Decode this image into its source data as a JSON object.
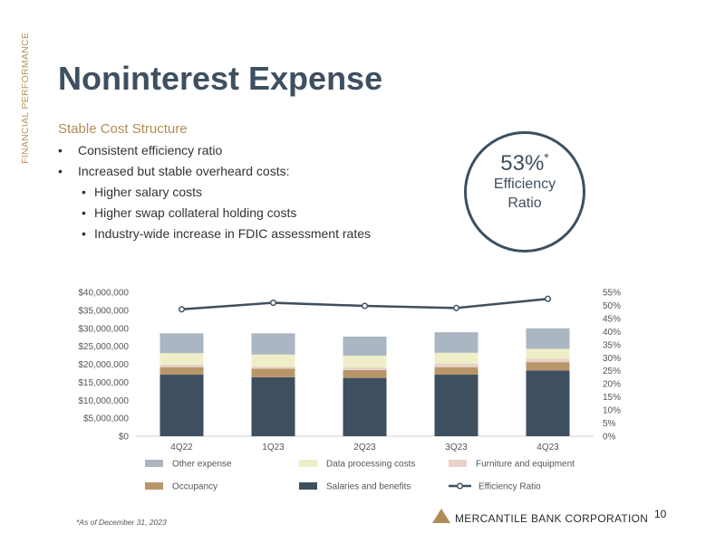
{
  "side_label": "FINANCIAL PERFORMANCE",
  "title": "Noninterest Expense",
  "subtitle": "Stable Cost Structure",
  "bullets": {
    "b1": "Consistent efficiency ratio",
    "b2": "Increased but stable overheard costs:",
    "s1": "Higher salary costs",
    "s2": "Higher swap collateral holding costs",
    "s3": "Industry-wide increase in FDIC assessment rates"
  },
  "callout": {
    "value": "53%",
    "mark": "*",
    "line1": "Efficiency",
    "line2": "Ratio"
  },
  "footnote": "*As of December 31, 2023",
  "company": "MERCANTILE BANK CORPORATION",
  "page_number": "10",
  "colors": {
    "brand_dark": "#3e5060",
    "brand_gold": "#b08d57"
  },
  "chart_data": {
    "type": "bar",
    "stacked": true,
    "categories": [
      "4Q22",
      "1Q23",
      "2Q23",
      "3Q23",
      "4Q23"
    ],
    "series": [
      {
        "name": "Salaries and benefits",
        "color": "#3e5060",
        "values": [
          17100000,
          16400000,
          16200000,
          17100000,
          18300000
        ]
      },
      {
        "name": "Occupancy",
        "color": "#b8966a",
        "values": [
          2100000,
          2400000,
          2200000,
          2100000,
          2300000
        ]
      },
      {
        "name": "Furniture and equipment",
        "color": "#e9d3c8",
        "values": [
          700000,
          600000,
          700000,
          1000000,
          1000000
        ]
      },
      {
        "name": "Data processing costs",
        "color": "#eeeec8",
        "values": [
          3200000,
          3300000,
          3300000,
          3000000,
          2700000
        ]
      },
      {
        "name": "Other expense",
        "color": "#aab6c2",
        "values": [
          5500000,
          5900000,
          5300000,
          5700000,
          5700000
        ]
      }
    ],
    "line": {
      "name": "Efficiency Ratio",
      "color": "#3e5060",
      "values": [
        48.5,
        51,
        49.8,
        49,
        52.5
      ]
    },
    "yticks": [
      "$0",
      "$5,000,000",
      "$10,000,000",
      "$15,000,000",
      "$20,000,000",
      "$25,000,000",
      "$30,000,000",
      "$35,000,000",
      "$40,000,000"
    ],
    "y2ticks": [
      "0%",
      "5%",
      "10%",
      "15%",
      "20%",
      "25%",
      "30%",
      "35%",
      "40%",
      "45%",
      "50%",
      "55%"
    ],
    "ylim": [
      0,
      40000000
    ],
    "y2lim": [
      0,
      55
    ],
    "legend_position": "bottom"
  }
}
